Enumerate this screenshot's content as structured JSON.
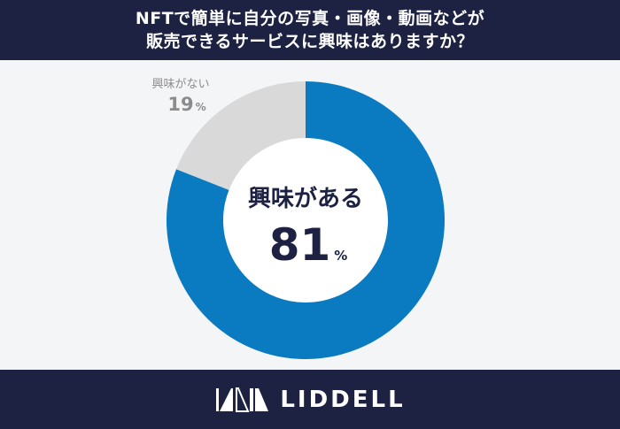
{
  "title_line1": "NFTで簡単に自分の写真・画像・動画などが",
  "title_line2": "販売できるサービスに興味はありますか？",
  "brand": "LIDDELL",
  "chart_data": {
    "type": "pie",
    "donut": true,
    "title": "NFTで簡単に自分の写真・画像・動画などが販売できるサービスに興味はありますか？",
    "slices": [
      {
        "label": "興味がある",
        "value": 81,
        "unit": "%",
        "color": "#0a7bc1"
      },
      {
        "label": "興味がない",
        "value": 19,
        "unit": "%",
        "color": "#d9d9d9"
      }
    ]
  }
}
